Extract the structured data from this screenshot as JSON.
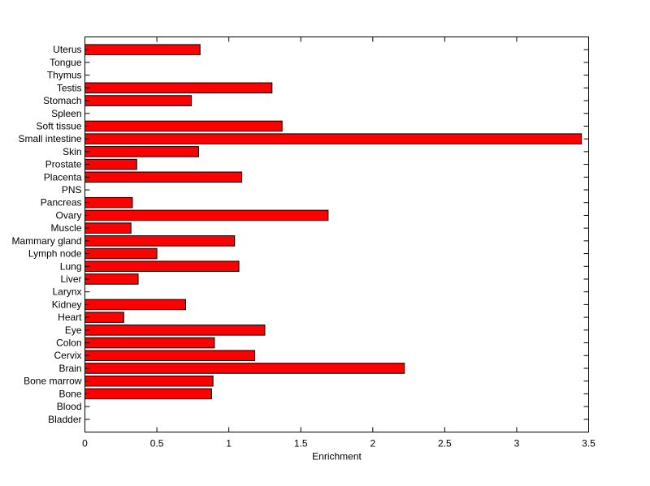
{
  "chart_data": {
    "type": "bar",
    "orientation": "horizontal",
    "title": "",
    "xlabel": "Enrichment",
    "ylabel": "",
    "xlim": [
      0,
      3.5
    ],
    "xticks": [
      "0",
      "0.5",
      "1",
      "1.5",
      "2",
      "2.5",
      "3",
      "3.5"
    ],
    "grid": false,
    "bar_color": "#ff0000",
    "bar_edge_color": "#000000",
    "categories": [
      "Uterus",
      "Tongue",
      "Thymus",
      "Testis",
      "Stomach",
      "Spleen",
      "Soft tissue",
      "Small intestine",
      "Skin",
      "Prostate",
      "Placenta",
      "PNS",
      "Pancreas",
      "Ovary",
      "Muscle",
      "Mammary gland",
      "Lymph node",
      "Lung",
      "Liver",
      "Larynx",
      "Kidney",
      "Heart",
      "Eye",
      "Colon",
      "Cervix",
      "Brain",
      "Bone marrow",
      "Bone",
      "Blood",
      "Bladder"
    ],
    "values": [
      0.8,
      0,
      0,
      1.3,
      0.74,
      0,
      1.37,
      3.45,
      0.79,
      0.36,
      1.09,
      0,
      0.33,
      1.69,
      0.32,
      1.04,
      0.5,
      1.07,
      0.37,
      0,
      0.7,
      0.27,
      1.25,
      0.9,
      1.18,
      2.22,
      0.89,
      0.88,
      0,
      0
    ]
  }
}
